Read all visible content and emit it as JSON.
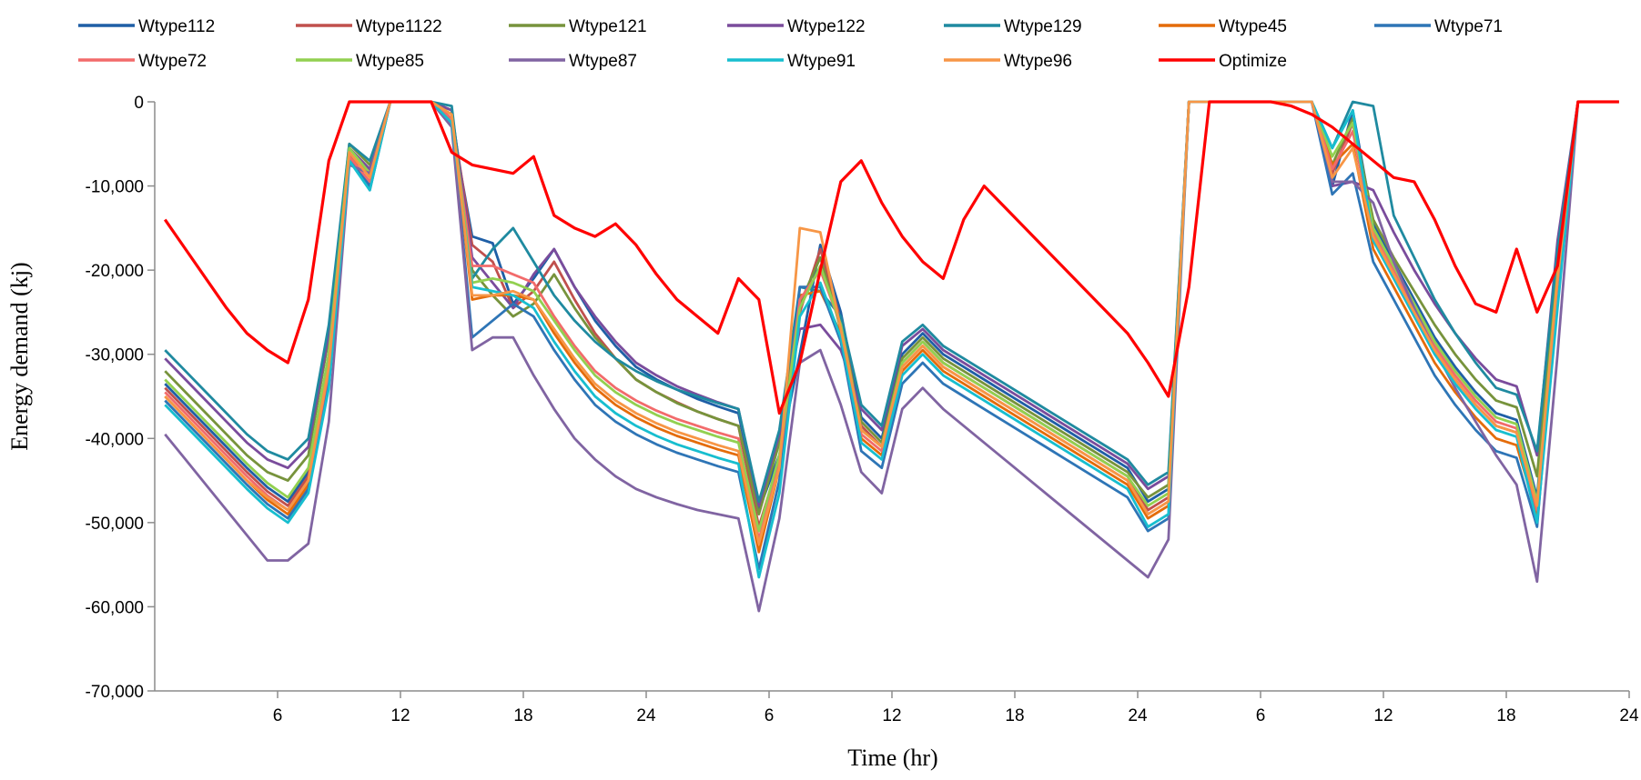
{
  "chart_data": {
    "type": "line",
    "title": "",
    "xlabel": "Time (hr)",
    "ylabel": "Energy demand (kj)",
    "ylim": [
      -70000,
      0
    ],
    "yticks": [
      0,
      -10000,
      -20000,
      -30000,
      -40000,
      -50000,
      -60000,
      -70000
    ],
    "ytick_labels": [
      "0",
      "-10,000",
      "-20,000",
      "-30,000",
      "-40,000",
      "-50,000",
      "-60,000",
      "-70,000"
    ],
    "x_count": 72,
    "xtick_positions": [
      6,
      12,
      18,
      24,
      30,
      36,
      42,
      48,
      54,
      60,
      66,
      72,
      78,
      84,
      90
    ],
    "xtick_labels": [
      "6",
      "12",
      "18",
      "24",
      "6",
      "12",
      "18",
      "24",
      "6",
      "12",
      "18",
      "24",
      "6",
      "12",
      "18"
    ],
    "grid": false,
    "legend_position": "top",
    "series": [
      {
        "name": "Wtype112",
        "color": "#1F5FA6",
        "values": [
          -33500,
          -36000,
          -38500,
          -41000,
          -43500,
          -45800,
          -47500,
          -44000,
          -30000,
          -6000,
          -10500,
          0,
          0,
          0,
          -2500,
          -16000,
          -16800,
          -24000,
          -21000,
          -17500,
          -22000,
          -26000,
          -29000,
          -31500,
          -33000,
          -34200,
          -35300,
          -36200,
          -37000,
          -48500,
          -42000,
          -30000,
          -17000,
          -25000,
          -37500,
          -40000,
          -30000,
          -27500,
          -30000,
          -31500,
          -33000,
          -34500,
          -36000,
          -37500,
          -39000,
          -40500,
          -42000,
          -43500,
          -47500,
          -46000,
          0,
          0,
          0,
          0,
          0,
          0,
          0,
          -10000,
          -1000,
          -14500,
          -19000,
          -23500,
          -28000,
          -31500,
          -34500,
          -37000,
          -37800,
          -47000,
          -19500,
          0,
          0,
          0
        ]
      },
      {
        "name": "Wtype1122",
        "color": "#C0504D",
        "values": [
          -34000,
          -36500,
          -39000,
          -41500,
          -44000,
          -46300,
          -48000,
          -44500,
          -31000,
          -6500,
          -8500,
          0,
          0,
          0,
          -1500,
          -17000,
          -19000,
          -24500,
          -22500,
          -19000,
          -23500,
          -27500,
          -30500,
          -33000,
          -34500,
          -35700,
          -36800,
          -37700,
          -38500,
          -50500,
          -42500,
          -25000,
          -17500,
          -26000,
          -38500,
          -41000,
          -31000,
          -28500,
          -31000,
          -32500,
          -34000,
          -35500,
          -37000,
          -38500,
          -40000,
          -41500,
          -43000,
          -44500,
          -48500,
          -47000,
          0,
          0,
          0,
          0,
          0,
          0,
          0,
          -8500,
          -2500,
          -16000,
          -20500,
          -25000,
          -29500,
          -33000,
          -36000,
          -38500,
          -39300,
          -48000,
          -20000,
          0,
          0,
          0
        ]
      },
      {
        "name": "Wtype121",
        "color": "#77933C",
        "values": [
          -32000,
          -34500,
          -37000,
          -39500,
          -42000,
          -44000,
          -45000,
          -42000,
          -28000,
          -5000,
          -7500,
          0,
          0,
          0,
          -1000,
          -20000,
          -23000,
          -25500,
          -24000,
          -20500,
          -24500,
          -28000,
          -30500,
          -33000,
          -34500,
          -35800,
          -36800,
          -37700,
          -38500,
          -49000,
          -40500,
          -24000,
          -18500,
          -27000,
          -38000,
          -40500,
          -30500,
          -28000,
          -30500,
          -32000,
          -33500,
          -35000,
          -36500,
          -38000,
          -39500,
          -41000,
          -42500,
          -44000,
          -47000,
          -45500,
          0,
          0,
          0,
          0,
          0,
          0,
          0,
          -7500,
          -2000,
          -14000,
          -18500,
          -22500,
          -26500,
          -30000,
          -33000,
          -35500,
          -36300,
          -44500,
          -18000,
          0,
          0,
          0
        ]
      },
      {
        "name": "Wtype122",
        "color": "#7A4C9C",
        "values": [
          -30500,
          -33000,
          -35500,
          -38000,
          -40500,
          -42500,
          -43500,
          -41000,
          -27500,
          -5500,
          -8000,
          0,
          0,
          0,
          -1000,
          -18500,
          -21500,
          -24500,
          -20500,
          -17500,
          -22000,
          -25500,
          -28500,
          -31000,
          -32500,
          -33800,
          -34800,
          -35700,
          -36500,
          -48000,
          -39500,
          -27000,
          -26500,
          -29500,
          -36500,
          -39000,
          -29000,
          -27000,
          -29500,
          -31000,
          -32500,
          -34000,
          -35500,
          -37000,
          -38500,
          -40000,
          -41500,
          -43000,
          -46000,
          -44500,
          0,
          0,
          0,
          0,
          0,
          0,
          0,
          -10000,
          -9500,
          -10500,
          -15500,
          -20000,
          -24000,
          -27500,
          -30500,
          -33000,
          -33800,
          -42000,
          -16500,
          0,
          0,
          0
        ]
      },
      {
        "name": "Wtype129",
        "color": "#1F8AA0",
        "values": [
          -29500,
          -32000,
          -34500,
          -37000,
          -39500,
          -41500,
          -42500,
          -40000,
          -26500,
          -5000,
          -7000,
          0,
          0,
          0,
          -500,
          -21000,
          -17500,
          -15000,
          -19000,
          -23000,
          -26000,
          -28500,
          -30500,
          -32000,
          -33200,
          -34200,
          -35000,
          -35800,
          -36500,
          -47500,
          -39000,
          -22000,
          -22500,
          -25500,
          -36000,
          -38500,
          -28500,
          -26500,
          -29000,
          -30500,
          -32000,
          -33500,
          -35000,
          -36500,
          -38000,
          -39500,
          -41000,
          -42500,
          -45500,
          -44000,
          0,
          0,
          0,
          0,
          0,
          0,
          0,
          -5500,
          0,
          -500,
          -13500,
          -18500,
          -23500,
          -27500,
          -31000,
          -34000,
          -34800,
          -41500,
          -17500,
          0,
          0,
          0
        ]
      },
      {
        "name": "Wtype45",
        "color": "#E46C0A",
        "values": [
          -35000,
          -37500,
          -40000,
          -42500,
          -45000,
          -47300,
          -49000,
          -45500,
          -32500,
          -6000,
          -9000,
          0,
          0,
          0,
          -2000,
          -23500,
          -23000,
          -23000,
          -23500,
          -27500,
          -31000,
          -34000,
          -36000,
          -37500,
          -38700,
          -39700,
          -40500,
          -41300,
          -42000,
          -53500,
          -43500,
          -23000,
          -22500,
          -27500,
          -40000,
          -42000,
          -32000,
          -29500,
          -32000,
          -33500,
          -35000,
          -36500,
          -38000,
          -39500,
          -41000,
          -42500,
          -44000,
          -45500,
          -49500,
          -48000,
          0,
          0,
          0,
          0,
          0,
          0,
          0,
          -7500,
          -5000,
          -17500,
          -22000,
          -26500,
          -31000,
          -34500,
          -37500,
          -40000,
          -40800,
          -49000,
          -21000,
          0,
          0,
          0
        ]
      },
      {
        "name": "Wtype71",
        "color": "#2E75B6",
        "values": [
          -35500,
          -38000,
          -40500,
          -43000,
          -45500,
          -47800,
          -49500,
          -46000,
          -33500,
          -6500,
          -10000,
          0,
          0,
          0,
          -2500,
          -28000,
          -26000,
          -24000,
          -25500,
          -29500,
          -33000,
          -36000,
          -38000,
          -39500,
          -40700,
          -41700,
          -42500,
          -43300,
          -44000,
          -55500,
          -45000,
          -22000,
          -22000,
          -28500,
          -41500,
          -43500,
          -33500,
          -31000,
          -33500,
          -35000,
          -36500,
          -38000,
          -39500,
          -41000,
          -42500,
          -44000,
          -45500,
          -47000,
          -51000,
          -49500,
          0,
          0,
          0,
          0,
          0,
          0,
          0,
          -11000,
          -8500,
          -19000,
          -23500,
          -28000,
          -32500,
          -36000,
          -39000,
          -41500,
          -42300,
          -50500,
          -22000,
          0,
          0,
          0
        ]
      },
      {
        "name": "Wtype72",
        "color": "#F26B6B",
        "values": [
          -34500,
          -37000,
          -39500,
          -42000,
          -44500,
          -46800,
          -48500,
          -45000,
          -32000,
          -6500,
          -9500,
          0,
          0,
          0,
          -2000,
          -19500,
          -19500,
          -20500,
          -21500,
          -25500,
          -29000,
          -32000,
          -34000,
          -35500,
          -36700,
          -37700,
          -38500,
          -39300,
          -40000,
          -52000,
          -43000,
          -23500,
          -20000,
          -26500,
          -39500,
          -41500,
          -31500,
          -29000,
          -31500,
          -33000,
          -34500,
          -36000,
          -37500,
          -39000,
          -40500,
          -42000,
          -43500,
          -45000,
          -49000,
          -47500,
          0,
          0,
          0,
          0,
          0,
          0,
          0,
          -8000,
          -3500,
          -15500,
          -20000,
          -24500,
          -29000,
          -32500,
          -35500,
          -38000,
          -38800,
          -48500,
          -21500,
          0,
          0,
          0
        ]
      },
      {
        "name": "Wtype85",
        "color": "#92D050",
        "values": [
          -33000,
          -35500,
          -38000,
          -40500,
          -43000,
          -45300,
          -47000,
          -43500,
          -30000,
          -5500,
          -8500,
          0,
          0,
          0,
          -1500,
          -21500,
          -21000,
          -21500,
          -22500,
          -26000,
          -29500,
          -32500,
          -34500,
          -36000,
          -37200,
          -38200,
          -39000,
          -39800,
          -40500,
          -51000,
          -42000,
          -24500,
          -19500,
          -26500,
          -39000,
          -41000,
          -31000,
          -28500,
          -31000,
          -32500,
          -34000,
          -35500,
          -37000,
          -38500,
          -40000,
          -41500,
          -43000,
          -44500,
          -48000,
          -46500,
          0,
          0,
          0,
          0,
          0,
          0,
          0,
          -6500,
          -2500,
          -15000,
          -19500,
          -24000,
          -28500,
          -32000,
          -35000,
          -37500,
          -38300,
          -47500,
          -20500,
          0,
          0,
          0
        ]
      },
      {
        "name": "Wtype87",
        "color": "#8064A2",
        "values": [
          -39500,
          -42500,
          -45500,
          -48500,
          -51500,
          -54500,
          -54500,
          -52500,
          -38000,
          -7500,
          -8500,
          0,
          0,
          0,
          -3000,
          -29500,
          -28000,
          -28000,
          -32500,
          -36500,
          -40000,
          -42500,
          -44500,
          -46000,
          -47000,
          -47800,
          -48500,
          -49000,
          -49500,
          -60500,
          -49500,
          -31000,
          -29500,
          -36000,
          -44000,
          -46500,
          -36500,
          -34000,
          -36500,
          -38500,
          -40500,
          -42500,
          -44500,
          -46500,
          -48500,
          -50500,
          -52500,
          -54500,
          -56500,
          -52000,
          0,
          0,
          0,
          0,
          0,
          0,
          0,
          -9500,
          -9500,
          -12000,
          -19000,
          -24500,
          -29500,
          -34000,
          -38000,
          -42000,
          -45500,
          -57000,
          -30000,
          0,
          0,
          0
        ]
      },
      {
        "name": "Wtype91",
        "color": "#17BECF",
        "values": [
          -36000,
          -38500,
          -41000,
          -43500,
          -46000,
          -48300,
          -50000,
          -46500,
          -34000,
          -7000,
          -10500,
          0,
          0,
          0,
          -2500,
          -22000,
          -22500,
          -23000,
          -24500,
          -28500,
          -32000,
          -35000,
          -37000,
          -38500,
          -39700,
          -40700,
          -41500,
          -42300,
          -43000,
          -56500,
          -46500,
          -25500,
          -21500,
          -28000,
          -40500,
          -42500,
          -32500,
          -30000,
          -32500,
          -34000,
          -35500,
          -37000,
          -38500,
          -40000,
          -41500,
          -43000,
          -44500,
          -46000,
          -50500,
          -49000,
          0,
          0,
          0,
          0,
          0,
          0,
          0,
          -5500,
          -1000,
          -16500,
          -21000,
          -25500,
          -30000,
          -33500,
          -36500,
          -39000,
          -39800,
          -50000,
          -24500,
          0,
          0,
          0
        ]
      },
      {
        "name": "Wtype96",
        "color": "#F79646",
        "values": [
          -35000,
          -37500,
          -40000,
          -42500,
          -45000,
          -47000,
          -48500,
          -45000,
          -31500,
          -6000,
          -9000,
          0,
          0,
          0,
          -1500,
          -23000,
          -23000,
          -22500,
          -23500,
          -27000,
          -30500,
          -33500,
          -35500,
          -37000,
          -38200,
          -39200,
          -40000,
          -40800,
          -41500,
          -52500,
          -43500,
          -15000,
          -15500,
          -27000,
          -39000,
          -41000,
          -31500,
          -29000,
          -31500,
          -33000,
          -34500,
          -36000,
          -37500,
          -39000,
          -40500,
          -42000,
          -43500,
          -45000,
          -49000,
          -47500,
          0,
          0,
          0,
          0,
          0,
          0,
          0,
          -9000,
          -5500,
          -16000,
          -20500,
          -25000,
          -29500,
          -33000,
          -36000,
          -38500,
          -39300,
          -48000,
          -21000,
          0,
          0,
          0
        ]
      },
      {
        "name": "Optimize",
        "color": "#FF0000",
        "values": [
          -14000,
          -17500,
          -21000,
          -24500,
          -27500,
          -29500,
          -31000,
          -23500,
          -7000,
          0,
          0,
          0,
          0,
          0,
          -6000,
          -7500,
          -8000,
          -8500,
          -6500,
          -13500,
          -15000,
          -16000,
          -14500,
          -17000,
          -20500,
          -23500,
          -25500,
          -27500,
          -21000,
          -23500,
          -37000,
          -31000,
          -20000,
          -9500,
          -7000,
          -12000,
          -16000,
          -19000,
          -21000,
          -14000,
          -10000,
          -12500,
          -15000,
          -17500,
          -20000,
          -22500,
          -25000,
          -27500,
          -31000,
          -35000,
          -22000,
          0,
          0,
          0,
          0,
          -500,
          -1500,
          -3000,
          -5000,
          -7000,
          -9000,
          -9500,
          -14000,
          -19500,
          -24000,
          -25000,
          -17500,
          -25000,
          -19500,
          0,
          0,
          0
        ]
      }
    ]
  }
}
